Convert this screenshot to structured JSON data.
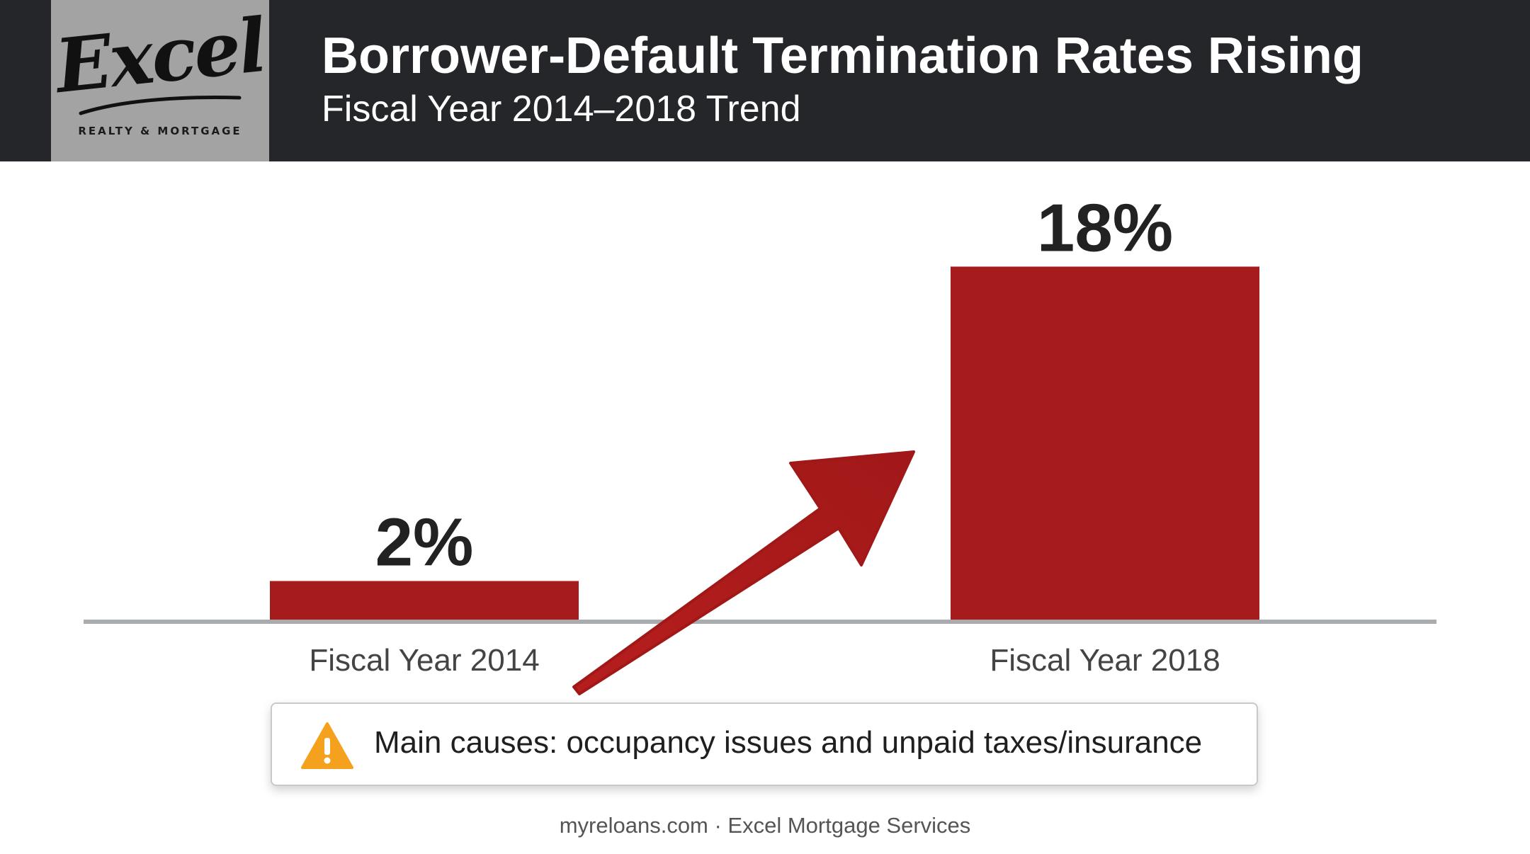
{
  "header": {
    "title": "Borrower-Default Termination Rates Rising",
    "subtitle": "Fiscal Year 2014–2018 Trend",
    "logo": {
      "script_text": "Excel",
      "tagline": "REALTY & MORTGAGE"
    }
  },
  "chart_data": {
    "type": "bar",
    "categories": [
      "Fiscal Year 2014",
      "Fiscal Year 2018"
    ],
    "values": [
      2,
      18
    ],
    "data_labels": [
      "2%",
      "18%"
    ],
    "unit": "%",
    "ylim": [
      0,
      20
    ],
    "grid": false,
    "bar_color": "#a61c1c",
    "axis_color": "#a9acaf",
    "trend_arrow": true
  },
  "callout": {
    "icon": "warning-icon",
    "icon_color": "#f4a21d",
    "text": "Main causes: occupancy issues and unpaid taxes/insurance"
  },
  "footer": {
    "text": "myreloans.com · Excel Mortgage Services"
  }
}
